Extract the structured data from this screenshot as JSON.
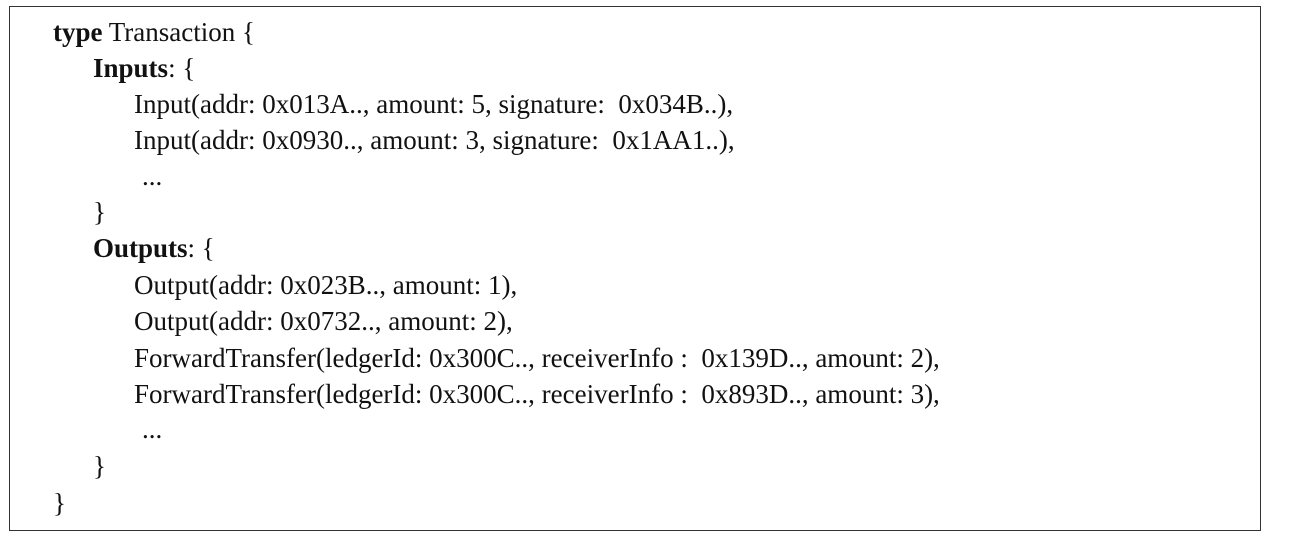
{
  "code": {
    "header": {
      "keyword": "type",
      "rest": " Transaction {"
    },
    "inputs": {
      "keyword": "Inputs",
      "rest": ": {",
      "items": [
        "Input(addr: 0x013A.., amount: 5, signature:  0x034B..),",
        "Input(addr: 0x0930.., amount: 3, signature:  0x1AA1..),"
      ],
      "ellipsis": "...",
      "close": "}"
    },
    "outputs": {
      "keyword": "Outputs",
      "rest": ": {",
      "items": [
        "Output(addr: 0x023B.., amount: 1),",
        "Output(addr: 0x0732.., amount: 2),",
        "ForwardTransfer(ledgerId: 0x300C.., receiverInfo :  0x139D.., amount: 2),",
        "ForwardTransfer(ledgerId: 0x300C.., receiverInfo :  0x893D.., amount: 3),"
      ],
      "ellipsis": "...",
      "close": "}"
    },
    "close": "}"
  }
}
